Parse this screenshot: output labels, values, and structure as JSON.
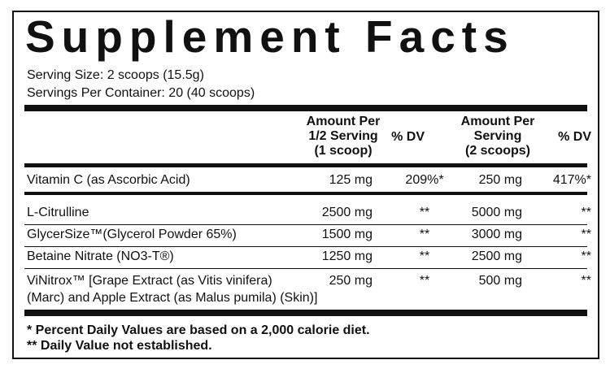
{
  "title": "Supplement Facts",
  "serving_size": "Serving Size: 2 scoops (15.5g)",
  "servings_per_container": "Servings Per Container: 20 (40 scoops)",
  "table": {
    "header": [
      [
        "Amount Per",
        "1/2 Serving",
        "(1 scoop)"
      ],
      [
        "% DV"
      ],
      [
        "Amount Per",
        "Serving",
        "(2 scoops)"
      ],
      [
        "% DV"
      ]
    ],
    "rows": [
      [
        [
          "Vitamin C (as Ascorbic Acid)"
        ],
        "125 mg",
        "209%*",
        "250 mg",
        "417%*"
      ],
      [
        [
          "L-Citrulline"
        ],
        "2500 mg",
        "**",
        "5000 mg",
        "**"
      ],
      [
        [
          "GlycerSize™(Glycerol Powder 65%)"
        ],
        "1500 mg",
        "**",
        "3000 mg",
        "**"
      ],
      [
        [
          "Betaine Nitrate (NO3-T®)"
        ],
        "1250 mg",
        "**",
        "2500 mg",
        "**"
      ],
      [
        [
          "ViNitrox™ [Grape Extract (as Vitis vinifera)",
          "(Marc) and Apple Extract (as Malus pumila) (Skin)]"
        ],
        "250 mg",
        "**",
        "500 mg",
        "**"
      ]
    ]
  },
  "footnotes": [
    "* Percent Daily Values are based on a 2,000 calorie diet.",
    "** Daily Value not established."
  ]
}
